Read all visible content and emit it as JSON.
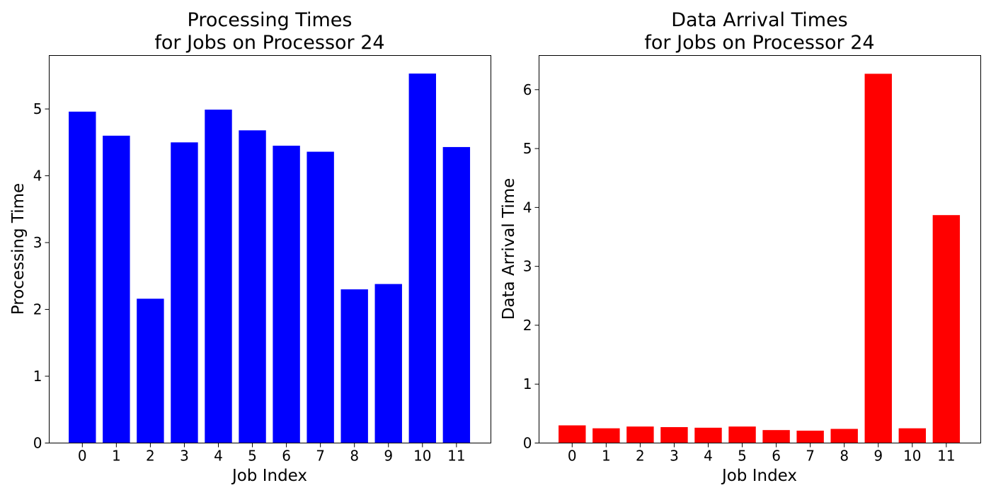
{
  "chart_data": [
    {
      "type": "bar",
      "title_line1": "Processing Times",
      "title_line2": "for Jobs on Processor 24",
      "xlabel": "Job Index",
      "ylabel": "Processing Time",
      "categories": [
        "0",
        "1",
        "2",
        "3",
        "4",
        "5",
        "6",
        "7",
        "8",
        "9",
        "10",
        "11"
      ],
      "values": [
        4.96,
        4.6,
        2.16,
        4.5,
        4.99,
        4.68,
        4.45,
        4.36,
        2.3,
        2.38,
        5.53,
        4.43
      ],
      "ylim": [
        0,
        5.8
      ],
      "yticks": [
        0,
        1,
        2,
        3,
        4,
        5
      ],
      "color": "#0000ff",
      "grid": false
    },
    {
      "type": "bar",
      "title_line1": "Data Arrival Times",
      "title_line2": "for Jobs on Processor 24",
      "xlabel": "Job Index",
      "ylabel": "Data Arrival Time",
      "categories": [
        "0",
        "1",
        "2",
        "3",
        "4",
        "5",
        "6",
        "7",
        "8",
        "9",
        "10",
        "11"
      ],
      "values": [
        0.3,
        0.25,
        0.28,
        0.27,
        0.26,
        0.28,
        0.22,
        0.21,
        0.24,
        6.27,
        0.25,
        3.87
      ],
      "ylim": [
        0,
        6.58
      ],
      "yticks": [
        0,
        1,
        2,
        3,
        4,
        5,
        6
      ],
      "color": "#ff0000",
      "grid": false
    }
  ]
}
